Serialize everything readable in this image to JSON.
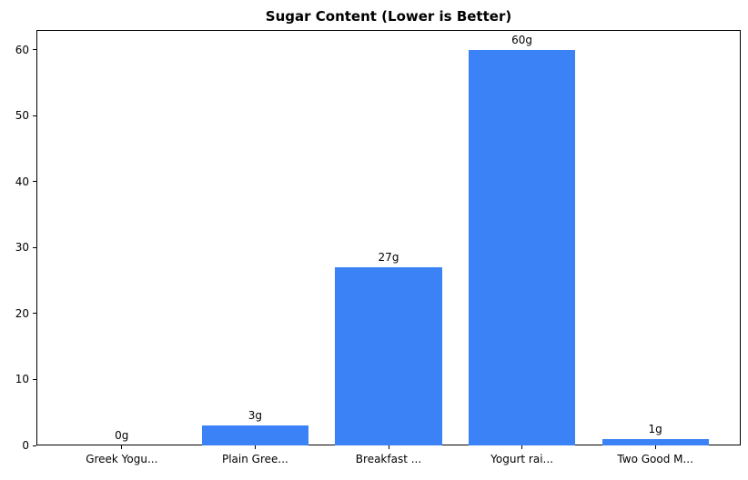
{
  "chart_data": {
    "type": "bar",
    "title": "Sugar Content (Lower is Better)",
    "categories": [
      "Greek Yogu...",
      "Plain Gree...",
      "Breakfast ...",
      "Yogurt rai...",
      "Two Good M..."
    ],
    "values": [
      0,
      3,
      27,
      60,
      1
    ],
    "value_labels": [
      "0g",
      "3g",
      "27g",
      "60g",
      "1g"
    ],
    "yticks": [
      0,
      10,
      20,
      30,
      40,
      50,
      60
    ],
    "ylim": [
      0,
      63
    ],
    "xlabel": "",
    "ylabel": "",
    "grid": false,
    "legend_position": "none",
    "bar_color": "#3b82f6",
    "axis_color": "#000000",
    "text_color": "#000000",
    "background_color": "#ffffff"
  }
}
